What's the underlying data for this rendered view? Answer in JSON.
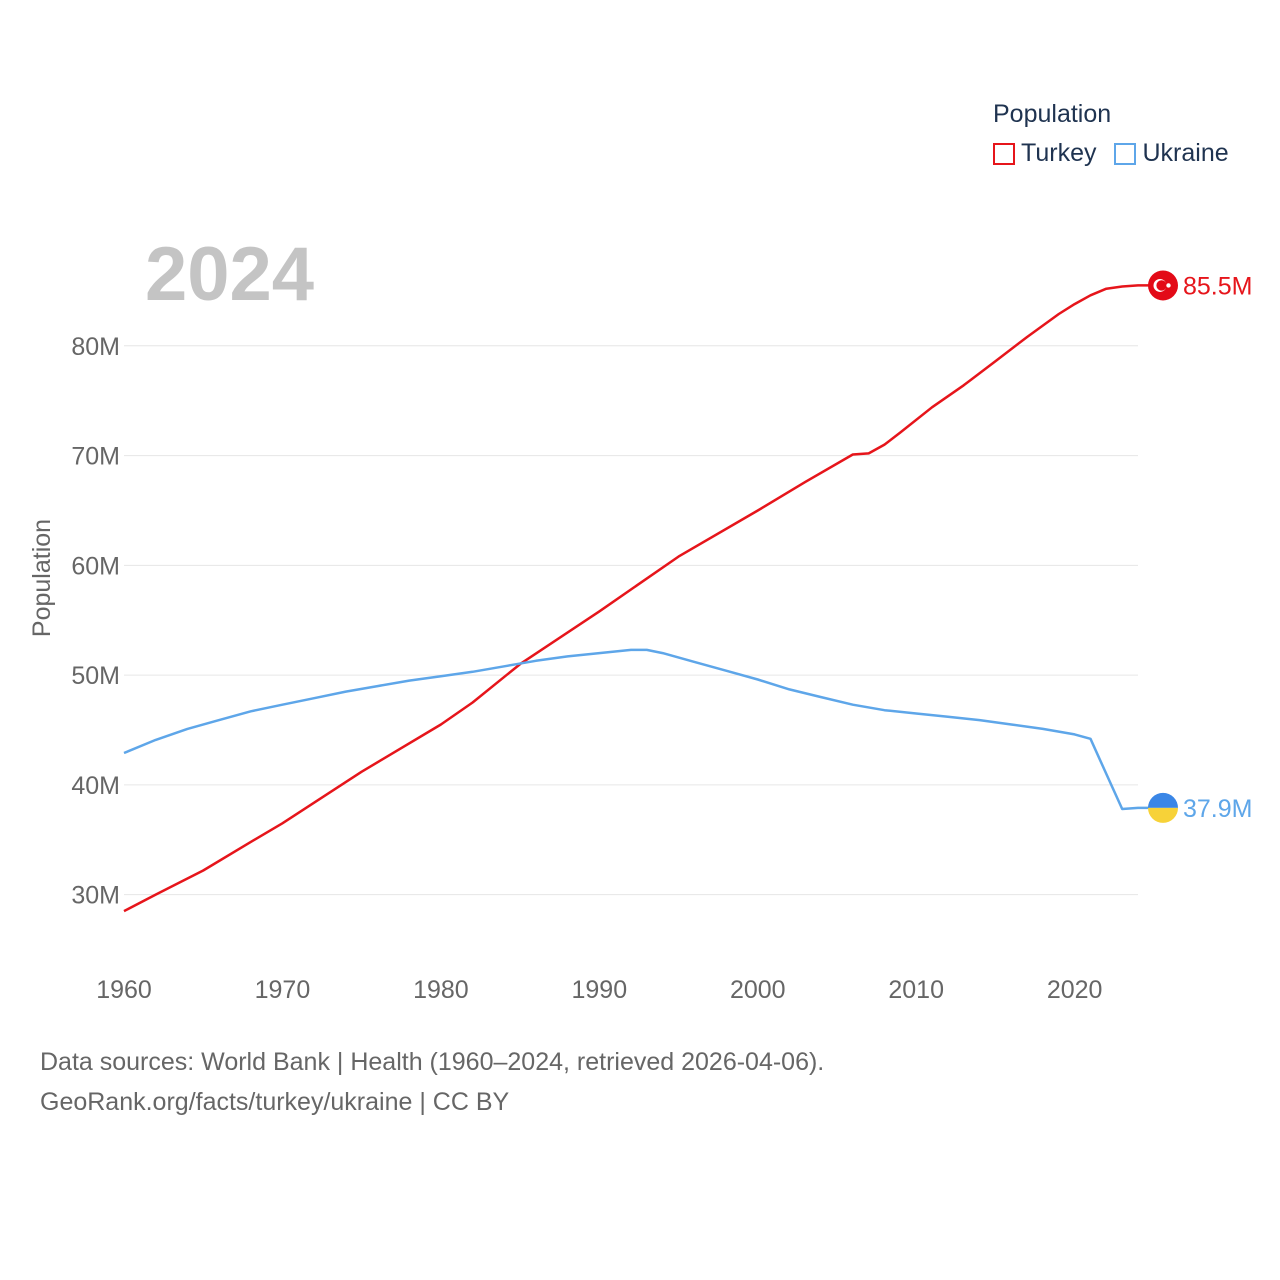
{
  "legend": {
    "title": "Population",
    "items": [
      {
        "label": "Turkey",
        "color": "#e6151b"
      },
      {
        "label": "Ukraine",
        "color": "#5ea6e9"
      }
    ]
  },
  "year_label": "2024",
  "sources": {
    "line1": "Data sources: World Bank | Health (1960–2024, retrieved 2026-04-06).",
    "line2": "GeoRank.org/facts/turkey/ukraine | CC BY"
  },
  "chart_data": {
    "type": "line",
    "title": "",
    "xlabel": "",
    "ylabel": "Population",
    "xlim": [
      1960,
      2024
    ],
    "ylim": [
      24.5,
      88
    ],
    "yticks": [
      30,
      40,
      50,
      60,
      70,
      80
    ],
    "ytick_labels": [
      "30M",
      "40M",
      "50M",
      "60M",
      "70M",
      "80M"
    ],
    "xticks": [
      1960,
      1970,
      1980,
      1990,
      2000,
      2010,
      2020
    ],
    "xtick_labels": [
      "1960",
      "1970",
      "1980",
      "1990",
      "2000",
      "2010",
      "2020"
    ],
    "grid": true,
    "series": [
      {
        "name": "Turkey",
        "color": "#e6151b",
        "end_label": "85.5M",
        "end_marker": "turkey-flag",
        "points": [
          [
            1960,
            28.5
          ],
          [
            1962,
            30.0
          ],
          [
            1965,
            32.2
          ],
          [
            1968,
            34.8
          ],
          [
            1970,
            36.5
          ],
          [
            1975,
            41.2
          ],
          [
            1980,
            45.5
          ],
          [
            1982,
            47.5
          ],
          [
            1985,
            51.0
          ],
          [
            1990,
            55.8
          ],
          [
            1995,
            60.8
          ],
          [
            2000,
            65.0
          ],
          [
            2003,
            67.6
          ],
          [
            2006,
            70.1
          ],
          [
            2007,
            70.2
          ],
          [
            2008,
            71.0
          ],
          [
            2009,
            72.1
          ],
          [
            2011,
            74.4
          ],
          [
            2013,
            76.4
          ],
          [
            2015,
            78.6
          ],
          [
            2017,
            80.8
          ],
          [
            2019,
            82.9
          ],
          [
            2020,
            83.8
          ],
          [
            2021,
            84.6
          ],
          [
            2022,
            85.2
          ],
          [
            2023,
            85.4
          ],
          [
            2024,
            85.5
          ]
        ]
      },
      {
        "name": "Ukraine",
        "color": "#5ea6e9",
        "end_label": "37.9M",
        "end_marker": "ukraine-flag",
        "points": [
          [
            1960,
            42.9
          ],
          [
            1962,
            44.1
          ],
          [
            1964,
            45.1
          ],
          [
            1966,
            45.9
          ],
          [
            1968,
            46.7
          ],
          [
            1970,
            47.3
          ],
          [
            1972,
            47.9
          ],
          [
            1974,
            48.5
          ],
          [
            1976,
            49.0
          ],
          [
            1978,
            49.5
          ],
          [
            1980,
            49.9
          ],
          [
            1982,
            50.3
          ],
          [
            1984,
            50.8
          ],
          [
            1986,
            51.3
          ],
          [
            1988,
            51.7
          ],
          [
            1990,
            52.0
          ],
          [
            1992,
            52.3
          ],
          [
            1993,
            52.3
          ],
          [
            1994,
            52.0
          ],
          [
            1996,
            51.2
          ],
          [
            1998,
            50.4
          ],
          [
            2000,
            49.6
          ],
          [
            2002,
            48.7
          ],
          [
            2004,
            48.0
          ],
          [
            2006,
            47.3
          ],
          [
            2008,
            46.8
          ],
          [
            2010,
            46.5
          ],
          [
            2012,
            46.2
          ],
          [
            2014,
            45.9
          ],
          [
            2016,
            45.5
          ],
          [
            2018,
            45.1
          ],
          [
            2020,
            44.6
          ],
          [
            2021,
            44.2
          ],
          [
            2022,
            41.0
          ],
          [
            2023,
            37.8
          ],
          [
            2024,
            37.9
          ]
        ]
      }
    ]
  }
}
